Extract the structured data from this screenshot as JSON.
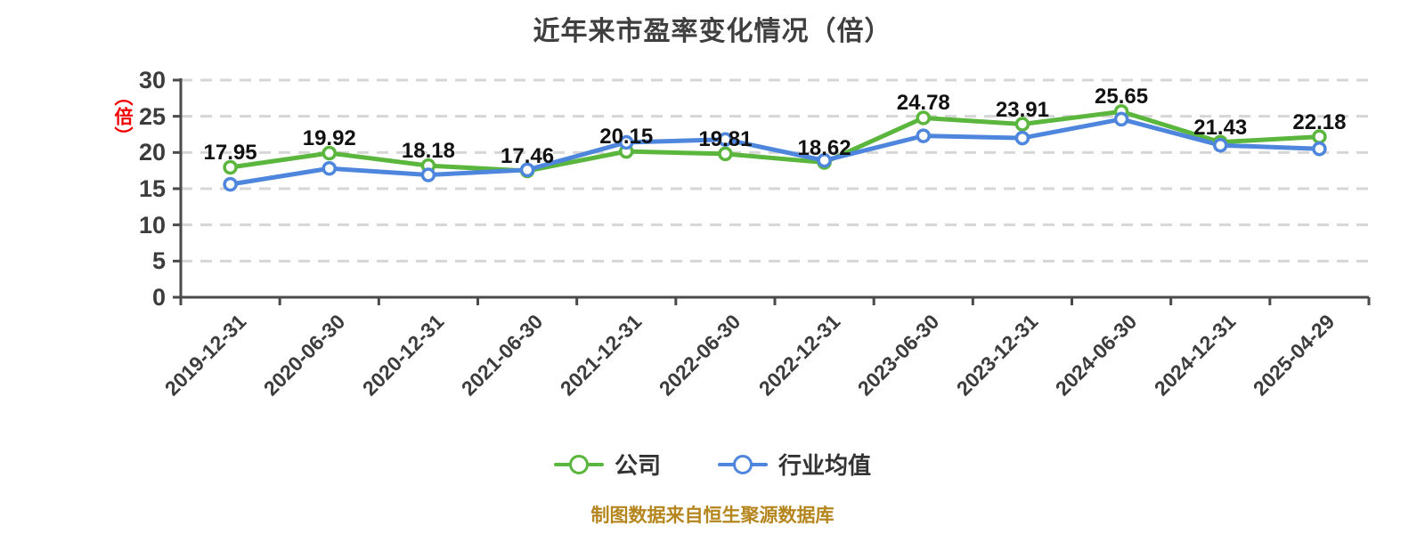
{
  "title": "近年来市盈率变化情况（倍）",
  "y_axis": {
    "unit_label": "（倍）",
    "unit_color": "#ee0000",
    "ticks": [
      0,
      5,
      10,
      15,
      20,
      25,
      30
    ],
    "min": 0,
    "max": 30
  },
  "chart_data": {
    "type": "line",
    "title": "近年来市盈率变化情况（倍）",
    "xlabel": "",
    "ylabel": "（倍）",
    "ylim": [
      0,
      30
    ],
    "grid": "horizontal-dashed",
    "legend_position": "bottom",
    "categories": [
      "2019-12-31",
      "2020-06-30",
      "2020-12-31",
      "2021-06-30",
      "2021-12-31",
      "2022-06-30",
      "2022-12-31",
      "2023-06-30",
      "2023-12-31",
      "2024-06-30",
      "2024-12-31",
      "2025-04-29"
    ],
    "series": [
      {
        "name": "公司",
        "color": "#5ab63c",
        "show_labels": true,
        "values": [
          17.95,
          19.92,
          18.18,
          17.46,
          20.15,
          19.81,
          18.62,
          24.78,
          23.91,
          25.65,
          21.43,
          22.18
        ]
      },
      {
        "name": "行业均值",
        "color": "#4e86de",
        "show_labels": false,
        "values": [
          15.6,
          17.8,
          16.9,
          17.6,
          21.4,
          21.8,
          18.9,
          22.3,
          22.0,
          24.6,
          21.0,
          20.5
        ]
      }
    ]
  },
  "legend": {
    "items": [
      {
        "label": "公司",
        "color": "#5ab63c"
      },
      {
        "label": "行业均值",
        "color": "#4e86de"
      }
    ]
  },
  "footer": {
    "source_note": "制图数据来自恒生聚源数据库",
    "color": "#b6861e"
  },
  "style": {
    "axis_color": "#4a4a4a",
    "grid_color": "#d6d6d6",
    "label_color": "#111111"
  }
}
